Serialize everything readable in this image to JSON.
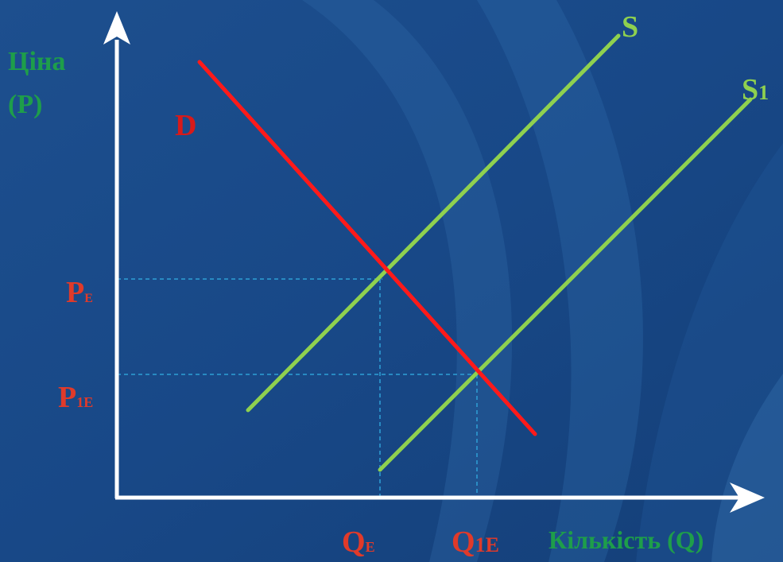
{
  "colors": {
    "background": "#1a4a86",
    "axes": "#ffffff",
    "demand": "#ff1a1a",
    "supply": "#8fd14f",
    "guides": "#2ea0d6",
    "axis_label": "#1e9e4a",
    "price_qty_label": "#e03a2a"
  },
  "axes": {
    "y_label_line1": "Ціна",
    "y_label_line2": "(P)",
    "x_label": "Кількість (Q)"
  },
  "curves": {
    "demand_label": "D",
    "supply_label": "S",
    "supply_shifted_label": {
      "main": "S",
      "sub": "1"
    }
  },
  "equilibrium": {
    "price_initial": {
      "main": "P",
      "sub": "E"
    },
    "price_new": {
      "main": "P",
      "sub": "1E"
    },
    "quantity_initial": {
      "main": "Q",
      "sub": "E"
    },
    "quantity_new": {
      "main": "Q",
      "sub": "1E"
    }
  },
  "icons": {
    "y_axis_arrow": "arrow-up-icon",
    "x_axis_arrow": "arrow-right-icon"
  }
}
